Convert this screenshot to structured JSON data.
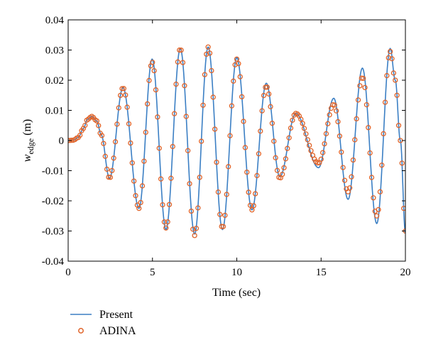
{
  "chart_data": {
    "type": "line",
    "title": "",
    "xlabel": "Time (sec)",
    "ylabel": {
      "variable": "w",
      "subscript": "edge",
      "unit": "(m)"
    },
    "xlim": [
      0,
      20
    ],
    "ylim": [
      -0.04,
      0.04
    ],
    "x_ticks": [
      0,
      5,
      10,
      15,
      20
    ],
    "x_tick_labels": [
      "0",
      "5",
      "10",
      "15",
      "20"
    ],
    "y_ticks": [
      -0.04,
      -0.03,
      -0.02,
      -0.01,
      0,
      0.01,
      0.02,
      0.03,
      0.04
    ],
    "y_tick_labels": [
      "-0.04",
      "-0.03",
      "-0.02",
      "-0.01",
      "0",
      "0.01",
      "0.02",
      "0.03",
      "0.04"
    ],
    "grid": false,
    "legend_position": "below-left",
    "series": [
      {
        "name": "Present",
        "style": "line",
        "color": "#3b7fc4",
        "x": [
          0,
          0.3,
          0.6,
          0.9,
          1.15,
          1.4,
          1.7,
          1.95,
          2.45,
          3.25,
          4.2,
          4.98,
          5.8,
          6.65,
          7.5,
          8.3,
          9.15,
          10.0,
          10.9,
          11.75,
          12.55,
          13.5,
          14.85,
          15.75,
          16.6,
          17.45,
          18.3,
          19.1,
          19.4,
          19.7,
          20.0
        ],
        "y": [
          0,
          0.0001,
          0.001,
          0.004,
          0.007,
          0.008,
          0.0065,
          0.002,
          -0.0125,
          0.0175,
          -0.0225,
          0.027,
          -0.0295,
          0.0305,
          -0.031,
          0.031,
          -0.0295,
          0.0275,
          -0.023,
          0.019,
          -0.012,
          0.009,
          -0.009,
          0.014,
          -0.0195,
          0.024,
          -0.0275,
          0.0305,
          0.02,
          0.0,
          -0.0305
        ]
      },
      {
        "name": "ADINA",
        "style": "markers",
        "marker": "circle-open",
        "color": "#e0642a",
        "x": [
          0,
          0.3,
          0.6,
          0.9,
          1.15,
          1.4,
          1.7,
          1.95,
          2.45,
          3.25,
          4.2,
          4.98,
          5.8,
          6.65,
          7.5,
          8.3,
          9.15,
          10.0,
          10.9,
          11.75,
          12.55,
          13.5,
          14.85,
          15.75,
          16.6,
          17.45,
          18.3,
          19.1,
          19.4,
          19.7,
          20.0
        ],
        "y": [
          0,
          0.0001,
          0.001,
          0.004,
          0.007,
          0.008,
          0.0065,
          0.002,
          -0.0125,
          0.0175,
          -0.0225,
          0.026,
          -0.029,
          0.0305,
          -0.0315,
          0.031,
          -0.029,
          0.027,
          -0.023,
          0.018,
          -0.0125,
          0.009,
          -0.0075,
          0.012,
          -0.017,
          0.021,
          -0.025,
          0.0295,
          0.02,
          0.0,
          -0.03
        ]
      }
    ]
  }
}
